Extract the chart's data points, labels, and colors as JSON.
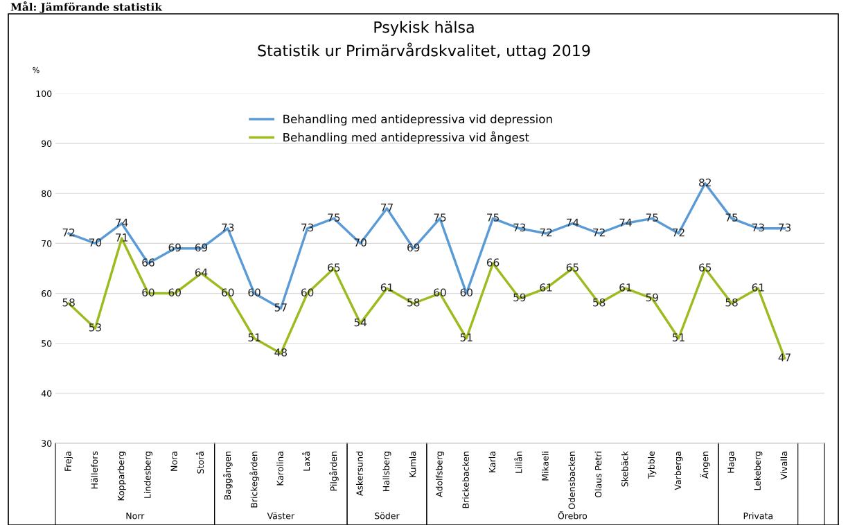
{
  "chart_data": {
    "type": "line",
    "title": "Psykisk hälsa\nStatistik ur Primärvårdskvalitet, uttag 2019",
    "ylabel": "%",
    "categories": [
      "Freja",
      "Hällefors",
      "Kopparberg",
      "Lindesberg",
      "Nora",
      "Storå",
      "Baggången",
      "Brickegården",
      "Karolina",
      "Laxå",
      "Pilgården",
      "Askersund",
      "Hallsberg",
      "Kumla",
      "Adolfsberg",
      "Brickebacken",
      "Karla",
      "Lillån",
      "Mikaeli",
      "Odensbacken",
      "Olaus Petri",
      "Skebäck",
      "Tybble",
      "Varberga",
      "Ängen",
      "Haga",
      "Lekeberg",
      "Vivalla",
      null
    ],
    "series": [
      {
        "name": "Behandling med antidepressiva vid depression",
        "color": "#5b9bd5",
        "values": [
          72,
          70,
          74,
          66,
          69,
          69,
          73,
          60,
          57,
          73,
          75,
          70,
          77,
          69,
          75,
          60,
          75,
          73,
          72,
          74,
          72,
          74,
          75,
          72,
          82,
          75,
          73,
          73,
          null
        ]
      },
      {
        "name": "Behandling med antidepressiva vid ångest",
        "color": "#9bbb1e",
        "values": [
          58,
          53,
          71,
          60,
          60,
          64,
          60,
          51,
          48,
          60,
          65,
          54,
          61,
          58,
          60,
          51,
          66,
          59,
          61,
          65,
          58,
          61,
          59,
          51,
          65,
          58,
          61,
          47,
          null
        ]
      }
    ],
    "ylim": [
      30,
      100
    ],
    "yticks": [
      30,
      40,
      50,
      60,
      70,
      80,
      90,
      100
    ],
    "grid": "y",
    "legend": "top",
    "data_labels": true,
    "marker": "none",
    "line_style": "solid",
    "annotations": [
      "Mål: Jämförande statistik",
      "Norr",
      "Väster",
      "Söder",
      "Örebro",
      "Privata"
    ]
  }
}
